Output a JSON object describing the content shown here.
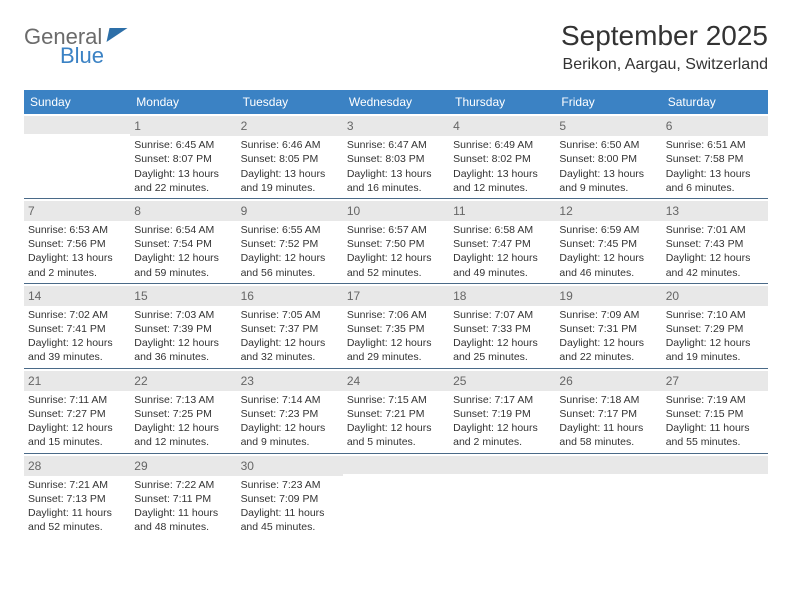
{
  "brand": {
    "line1": "General",
    "line2": "Blue"
  },
  "title": "September 2025",
  "location": "Berikon, Aargau, Switzerland",
  "colors": {
    "header_bg": "#3b82c4",
    "header_text": "#ffffff",
    "daynum_bg": "#e8e8e8",
    "daynum_text": "#666666",
    "row_divider": "#4a6a88",
    "body_text": "#333333",
    "page_bg": "#ffffff"
  },
  "days_of_week": [
    "Sunday",
    "Monday",
    "Tuesday",
    "Wednesday",
    "Thursday",
    "Friday",
    "Saturday"
  ],
  "weeks": [
    [
      {
        "num": "",
        "sunrise": "",
        "sunset": "",
        "daylight": ""
      },
      {
        "num": "1",
        "sunrise": "Sunrise: 6:45 AM",
        "sunset": "Sunset: 8:07 PM",
        "daylight": "Daylight: 13 hours and 22 minutes."
      },
      {
        "num": "2",
        "sunrise": "Sunrise: 6:46 AM",
        "sunset": "Sunset: 8:05 PM",
        "daylight": "Daylight: 13 hours and 19 minutes."
      },
      {
        "num": "3",
        "sunrise": "Sunrise: 6:47 AM",
        "sunset": "Sunset: 8:03 PM",
        "daylight": "Daylight: 13 hours and 16 minutes."
      },
      {
        "num": "4",
        "sunrise": "Sunrise: 6:49 AM",
        "sunset": "Sunset: 8:02 PM",
        "daylight": "Daylight: 13 hours and 12 minutes."
      },
      {
        "num": "5",
        "sunrise": "Sunrise: 6:50 AM",
        "sunset": "Sunset: 8:00 PM",
        "daylight": "Daylight: 13 hours and 9 minutes."
      },
      {
        "num": "6",
        "sunrise": "Sunrise: 6:51 AM",
        "sunset": "Sunset: 7:58 PM",
        "daylight": "Daylight: 13 hours and 6 minutes."
      }
    ],
    [
      {
        "num": "7",
        "sunrise": "Sunrise: 6:53 AM",
        "sunset": "Sunset: 7:56 PM",
        "daylight": "Daylight: 13 hours and 2 minutes."
      },
      {
        "num": "8",
        "sunrise": "Sunrise: 6:54 AM",
        "sunset": "Sunset: 7:54 PM",
        "daylight": "Daylight: 12 hours and 59 minutes."
      },
      {
        "num": "9",
        "sunrise": "Sunrise: 6:55 AM",
        "sunset": "Sunset: 7:52 PM",
        "daylight": "Daylight: 12 hours and 56 minutes."
      },
      {
        "num": "10",
        "sunrise": "Sunrise: 6:57 AM",
        "sunset": "Sunset: 7:50 PM",
        "daylight": "Daylight: 12 hours and 52 minutes."
      },
      {
        "num": "11",
        "sunrise": "Sunrise: 6:58 AM",
        "sunset": "Sunset: 7:47 PM",
        "daylight": "Daylight: 12 hours and 49 minutes."
      },
      {
        "num": "12",
        "sunrise": "Sunrise: 6:59 AM",
        "sunset": "Sunset: 7:45 PM",
        "daylight": "Daylight: 12 hours and 46 minutes."
      },
      {
        "num": "13",
        "sunrise": "Sunrise: 7:01 AM",
        "sunset": "Sunset: 7:43 PM",
        "daylight": "Daylight: 12 hours and 42 minutes."
      }
    ],
    [
      {
        "num": "14",
        "sunrise": "Sunrise: 7:02 AM",
        "sunset": "Sunset: 7:41 PM",
        "daylight": "Daylight: 12 hours and 39 minutes."
      },
      {
        "num": "15",
        "sunrise": "Sunrise: 7:03 AM",
        "sunset": "Sunset: 7:39 PM",
        "daylight": "Daylight: 12 hours and 36 minutes."
      },
      {
        "num": "16",
        "sunrise": "Sunrise: 7:05 AM",
        "sunset": "Sunset: 7:37 PM",
        "daylight": "Daylight: 12 hours and 32 minutes."
      },
      {
        "num": "17",
        "sunrise": "Sunrise: 7:06 AM",
        "sunset": "Sunset: 7:35 PM",
        "daylight": "Daylight: 12 hours and 29 minutes."
      },
      {
        "num": "18",
        "sunrise": "Sunrise: 7:07 AM",
        "sunset": "Sunset: 7:33 PM",
        "daylight": "Daylight: 12 hours and 25 minutes."
      },
      {
        "num": "19",
        "sunrise": "Sunrise: 7:09 AM",
        "sunset": "Sunset: 7:31 PM",
        "daylight": "Daylight: 12 hours and 22 minutes."
      },
      {
        "num": "20",
        "sunrise": "Sunrise: 7:10 AM",
        "sunset": "Sunset: 7:29 PM",
        "daylight": "Daylight: 12 hours and 19 minutes."
      }
    ],
    [
      {
        "num": "21",
        "sunrise": "Sunrise: 7:11 AM",
        "sunset": "Sunset: 7:27 PM",
        "daylight": "Daylight: 12 hours and 15 minutes."
      },
      {
        "num": "22",
        "sunrise": "Sunrise: 7:13 AM",
        "sunset": "Sunset: 7:25 PM",
        "daylight": "Daylight: 12 hours and 12 minutes."
      },
      {
        "num": "23",
        "sunrise": "Sunrise: 7:14 AM",
        "sunset": "Sunset: 7:23 PM",
        "daylight": "Daylight: 12 hours and 9 minutes."
      },
      {
        "num": "24",
        "sunrise": "Sunrise: 7:15 AM",
        "sunset": "Sunset: 7:21 PM",
        "daylight": "Daylight: 12 hours and 5 minutes."
      },
      {
        "num": "25",
        "sunrise": "Sunrise: 7:17 AM",
        "sunset": "Sunset: 7:19 PM",
        "daylight": "Daylight: 12 hours and 2 minutes."
      },
      {
        "num": "26",
        "sunrise": "Sunrise: 7:18 AM",
        "sunset": "Sunset: 7:17 PM",
        "daylight": "Daylight: 11 hours and 58 minutes."
      },
      {
        "num": "27",
        "sunrise": "Sunrise: 7:19 AM",
        "sunset": "Sunset: 7:15 PM",
        "daylight": "Daylight: 11 hours and 55 minutes."
      }
    ],
    [
      {
        "num": "28",
        "sunrise": "Sunrise: 7:21 AM",
        "sunset": "Sunset: 7:13 PM",
        "daylight": "Daylight: 11 hours and 52 minutes."
      },
      {
        "num": "29",
        "sunrise": "Sunrise: 7:22 AM",
        "sunset": "Sunset: 7:11 PM",
        "daylight": "Daylight: 11 hours and 48 minutes."
      },
      {
        "num": "30",
        "sunrise": "Sunrise: 7:23 AM",
        "sunset": "Sunset: 7:09 PM",
        "daylight": "Daylight: 11 hours and 45 minutes."
      },
      {
        "num": "",
        "sunrise": "",
        "sunset": "",
        "daylight": ""
      },
      {
        "num": "",
        "sunrise": "",
        "sunset": "",
        "daylight": ""
      },
      {
        "num": "",
        "sunrise": "",
        "sunset": "",
        "daylight": ""
      },
      {
        "num": "",
        "sunrise": "",
        "sunset": "",
        "daylight": ""
      }
    ]
  ]
}
